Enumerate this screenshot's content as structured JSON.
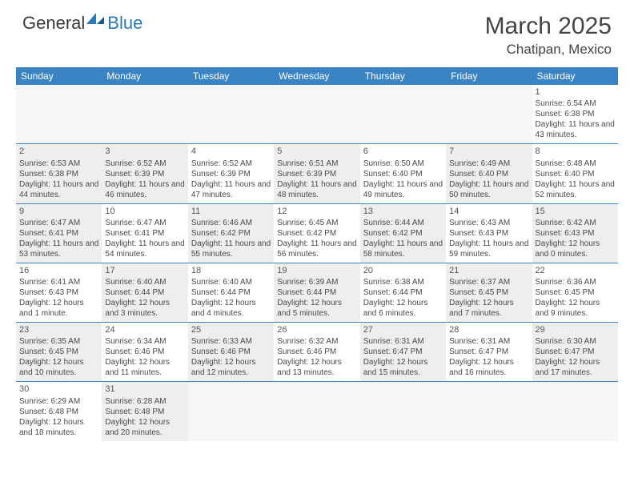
{
  "logo": {
    "part1": "General",
    "part2": "Blue"
  },
  "title": "March 2025",
  "location": "Chatipan, Mexico",
  "colors": {
    "header_bg": "#3a84c4",
    "header_text": "#ffffff",
    "row_border": "#3a84c4",
    "shaded_bg": "#eeeeee",
    "empty_bg": "#f6f6f6",
    "text": "#4a4a4a",
    "logo_blue": "#2a7ab8"
  },
  "day_headers": [
    "Sunday",
    "Monday",
    "Tuesday",
    "Wednesday",
    "Thursday",
    "Friday",
    "Saturday"
  ],
  "weeks": [
    [
      {
        "empty": true
      },
      {
        "empty": true
      },
      {
        "empty": true
      },
      {
        "empty": true
      },
      {
        "empty": true
      },
      {
        "empty": true
      },
      {
        "num": "1",
        "sunrise": "Sunrise: 6:54 AM",
        "sunset": "Sunset: 6:38 PM",
        "daylight": "Daylight: 11 hours and 43 minutes."
      }
    ],
    [
      {
        "num": "2",
        "shaded": true,
        "sunrise": "Sunrise: 6:53 AM",
        "sunset": "Sunset: 6:38 PM",
        "daylight": "Daylight: 11 hours and 44 minutes."
      },
      {
        "num": "3",
        "shaded": true,
        "sunrise": "Sunrise: 6:52 AM",
        "sunset": "Sunset: 6:39 PM",
        "daylight": "Daylight: 11 hours and 46 minutes."
      },
      {
        "num": "4",
        "sunrise": "Sunrise: 6:52 AM",
        "sunset": "Sunset: 6:39 PM",
        "daylight": "Daylight: 11 hours and 47 minutes."
      },
      {
        "num": "5",
        "shaded": true,
        "sunrise": "Sunrise: 6:51 AM",
        "sunset": "Sunset: 6:39 PM",
        "daylight": "Daylight: 11 hours and 48 minutes."
      },
      {
        "num": "6",
        "sunrise": "Sunrise: 6:50 AM",
        "sunset": "Sunset: 6:40 PM",
        "daylight": "Daylight: 11 hours and 49 minutes."
      },
      {
        "num": "7",
        "shaded": true,
        "sunrise": "Sunrise: 6:49 AM",
        "sunset": "Sunset: 6:40 PM",
        "daylight": "Daylight: 11 hours and 50 minutes."
      },
      {
        "num": "8",
        "sunrise": "Sunrise: 6:48 AM",
        "sunset": "Sunset: 6:40 PM",
        "daylight": "Daylight: 11 hours and 52 minutes."
      }
    ],
    [
      {
        "num": "9",
        "shaded": true,
        "sunrise": "Sunrise: 6:47 AM",
        "sunset": "Sunset: 6:41 PM",
        "daylight": "Daylight: 11 hours and 53 minutes."
      },
      {
        "num": "10",
        "sunrise": "Sunrise: 6:47 AM",
        "sunset": "Sunset: 6:41 PM",
        "daylight": "Daylight: 11 hours and 54 minutes."
      },
      {
        "num": "11",
        "shaded": true,
        "sunrise": "Sunrise: 6:46 AM",
        "sunset": "Sunset: 6:42 PM",
        "daylight": "Daylight: 11 hours and 55 minutes."
      },
      {
        "num": "12",
        "sunrise": "Sunrise: 6:45 AM",
        "sunset": "Sunset: 6:42 PM",
        "daylight": "Daylight: 11 hours and 56 minutes."
      },
      {
        "num": "13",
        "shaded": true,
        "sunrise": "Sunrise: 6:44 AM",
        "sunset": "Sunset: 6:42 PM",
        "daylight": "Daylight: 11 hours and 58 minutes."
      },
      {
        "num": "14",
        "sunrise": "Sunrise: 6:43 AM",
        "sunset": "Sunset: 6:43 PM",
        "daylight": "Daylight: 11 hours and 59 minutes."
      },
      {
        "num": "15",
        "shaded": true,
        "sunrise": "Sunrise: 6:42 AM",
        "sunset": "Sunset: 6:43 PM",
        "daylight": "Daylight: 12 hours and 0 minutes."
      }
    ],
    [
      {
        "num": "16",
        "sunrise": "Sunrise: 6:41 AM",
        "sunset": "Sunset: 6:43 PM",
        "daylight": "Daylight: 12 hours and 1 minute."
      },
      {
        "num": "17",
        "shaded": true,
        "sunrise": "Sunrise: 6:40 AM",
        "sunset": "Sunset: 6:44 PM",
        "daylight": "Daylight: 12 hours and 3 minutes."
      },
      {
        "num": "18",
        "sunrise": "Sunrise: 6:40 AM",
        "sunset": "Sunset: 6:44 PM",
        "daylight": "Daylight: 12 hours and 4 minutes."
      },
      {
        "num": "19",
        "shaded": true,
        "sunrise": "Sunrise: 6:39 AM",
        "sunset": "Sunset: 6:44 PM",
        "daylight": "Daylight: 12 hours and 5 minutes."
      },
      {
        "num": "20",
        "sunrise": "Sunrise: 6:38 AM",
        "sunset": "Sunset: 6:44 PM",
        "daylight": "Daylight: 12 hours and 6 minutes."
      },
      {
        "num": "21",
        "shaded": true,
        "sunrise": "Sunrise: 6:37 AM",
        "sunset": "Sunset: 6:45 PM",
        "daylight": "Daylight: 12 hours and 7 minutes."
      },
      {
        "num": "22",
        "sunrise": "Sunrise: 6:36 AM",
        "sunset": "Sunset: 6:45 PM",
        "daylight": "Daylight: 12 hours and 9 minutes."
      }
    ],
    [
      {
        "num": "23",
        "shaded": true,
        "sunrise": "Sunrise: 6:35 AM",
        "sunset": "Sunset: 6:45 PM",
        "daylight": "Daylight: 12 hours and 10 minutes."
      },
      {
        "num": "24",
        "sunrise": "Sunrise: 6:34 AM",
        "sunset": "Sunset: 6:46 PM",
        "daylight": "Daylight: 12 hours and 11 minutes."
      },
      {
        "num": "25",
        "shaded": true,
        "sunrise": "Sunrise: 6:33 AM",
        "sunset": "Sunset: 6:46 PM",
        "daylight": "Daylight: 12 hours and 12 minutes."
      },
      {
        "num": "26",
        "sunrise": "Sunrise: 6:32 AM",
        "sunset": "Sunset: 6:46 PM",
        "daylight": "Daylight: 12 hours and 13 minutes."
      },
      {
        "num": "27",
        "shaded": true,
        "sunrise": "Sunrise: 6:31 AM",
        "sunset": "Sunset: 6:47 PM",
        "daylight": "Daylight: 12 hours and 15 minutes."
      },
      {
        "num": "28",
        "sunrise": "Sunrise: 6:31 AM",
        "sunset": "Sunset: 6:47 PM",
        "daylight": "Daylight: 12 hours and 16 minutes."
      },
      {
        "num": "29",
        "shaded": true,
        "sunrise": "Sunrise: 6:30 AM",
        "sunset": "Sunset: 6:47 PM",
        "daylight": "Daylight: 12 hours and 17 minutes."
      }
    ],
    [
      {
        "num": "30",
        "sunrise": "Sunrise: 6:29 AM",
        "sunset": "Sunset: 6:48 PM",
        "daylight": "Daylight: 12 hours and 18 minutes."
      },
      {
        "num": "31",
        "shaded": true,
        "sunrise": "Sunrise: 6:28 AM",
        "sunset": "Sunset: 6:48 PM",
        "daylight": "Daylight: 12 hours and 20 minutes."
      },
      {
        "empty": true
      },
      {
        "empty": true
      },
      {
        "empty": true
      },
      {
        "empty": true
      },
      {
        "empty": true
      }
    ]
  ]
}
